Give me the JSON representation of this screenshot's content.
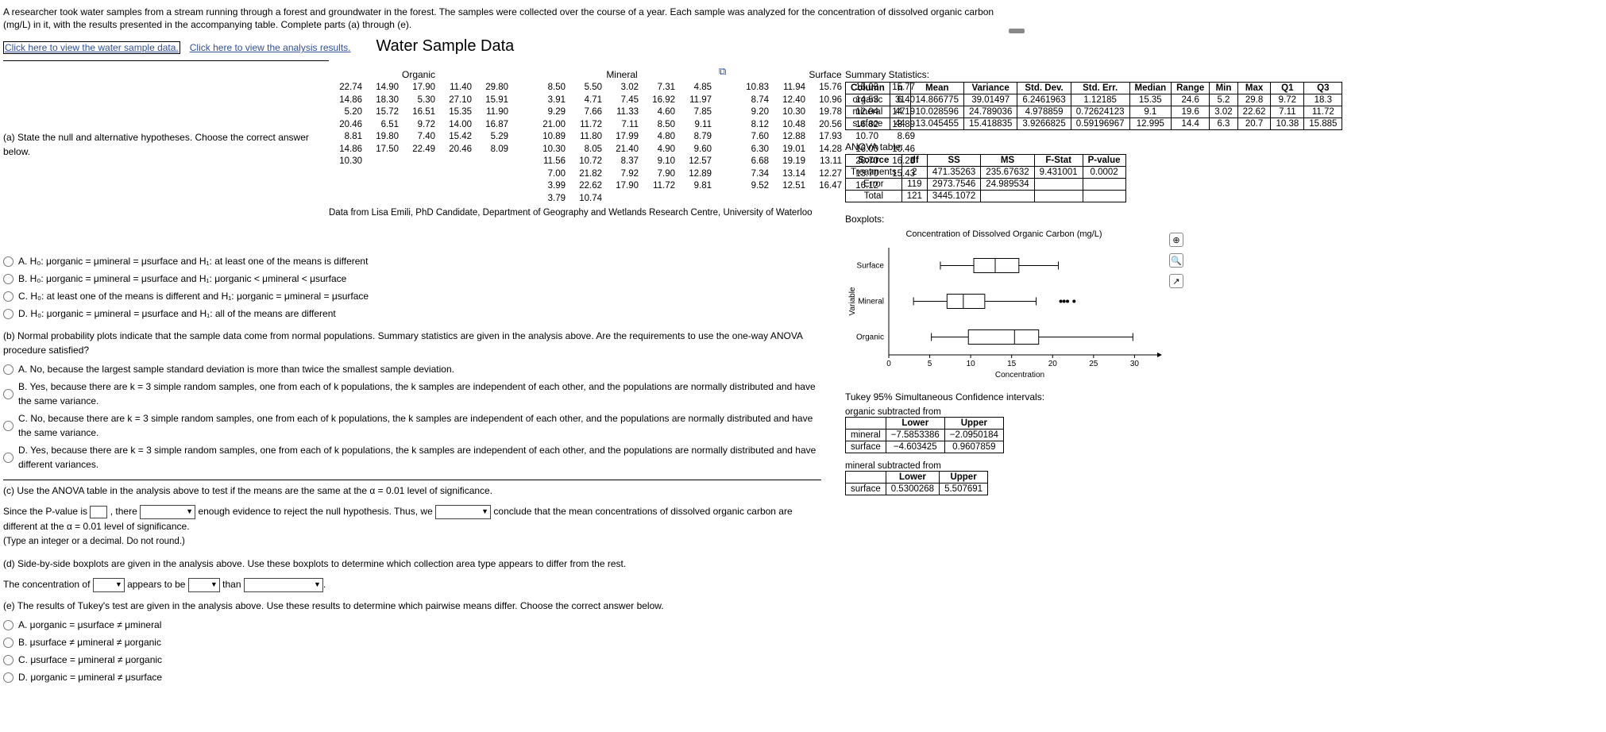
{
  "intro": "A researcher took water samples from a stream running through a forest and groundwater in the forest. The samples were collected over the course of a year. Each sample was analyzed for the concentration of dissolved organic carbon (mg/L) in it, with the results presented in the accompanying table. Complete parts (a) through (e).",
  "links": {
    "data": "Click here to view the water sample data.",
    "analysis": "Click here to view the analysis results."
  },
  "panel_title": "Water Sample Data",
  "data_credit": "Data from Lisa Emili, PhD Candidate, Department of Geography and Wetlands Research Centre, University of Waterloo",
  "columns": {
    "organic": {
      "header": "Organic",
      "values": [
        "22.74",
        "14.90",
        "17.90",
        "11.40",
        "29.80",
        "14.86",
        "18.30",
        "5.30",
        "27.10",
        "15.91",
        "5.20",
        "15.72",
        "16.51",
        "15.35",
        "11.90",
        "20.46",
        "6.51",
        "9.72",
        "14.00",
        "16.87",
        "8.81",
        "19.80",
        "7.40",
        "15.42",
        "5.29",
        "14.86",
        "17.50",
        "22.49",
        "20.46",
        "8.09",
        "10.30"
      ]
    },
    "mineral": {
      "header": "Mineral",
      "values": [
        "8.50",
        "5.50",
        "3.02",
        "7.31",
        "4.85",
        "3.91",
        "4.71",
        "7.45",
        "16.92",
        "11.97",
        "9.29",
        "7.66",
        "11.33",
        "4.60",
        "7.85",
        "21.00",
        "11.72",
        "7.11",
        "8.50",
        "9.11",
        "10.89",
        "11.80",
        "17.99",
        "4.80",
        "8.79",
        "10.30",
        "8.05",
        "21.40",
        "4.90",
        "9.60",
        "11.56",
        "10.72",
        "8.37",
        "9.10",
        "12.57",
        "7.00",
        "21.82",
        "7.92",
        "7.90",
        "12.89",
        "3.99",
        "22.62",
        "17.90",
        "11.72",
        "9.81",
        "3.79",
        "10.74"
      ]
    },
    "surface": {
      "header": "Surface",
      "values": [
        "10.83",
        "11.94",
        "15.76",
        "15.03",
        "15.77",
        "8.74",
        "12.40",
        "10.96",
        "14.53",
        "6.40",
        "9.20",
        "10.30",
        "19.78",
        "12.04",
        "14.19",
        "8.12",
        "10.48",
        "20.56",
        "16.82",
        "13.89",
        "7.60",
        "12.88",
        "17.93",
        "10.70",
        "8.69",
        "6.30",
        "19.01",
        "14.28",
        "16.00",
        "10.46",
        "6.68",
        "19.19",
        "13.11",
        "20.70",
        "16.23",
        "7.34",
        "13.14",
        "12.27",
        "13.70",
        "15.43",
        "9.52",
        "12.51",
        "16.47",
        "16.12"
      ]
    }
  },
  "qa": {
    "prompt": "(a) State the null and alternative hypotheses. Choose the correct answer below.",
    "A": {
      "lead": "A.  H₀: μorganic = μmineral = μsurface  and H₁: at least one of the means is different"
    },
    "B": {
      "lead": "B.  H₀: μorganic = μmineral = μsurface  and H₁: μorganic < μmineral < μsurface"
    },
    "C": {
      "lead": "C.  H₀: at least one of the means is different and H₁: μorganic = μmineral = μsurface"
    },
    "D": {
      "lead": "D.  H₀: μorganic = μmineral = μsurface  and H₁: all of the means are different"
    }
  },
  "qb": {
    "prompt": "(b) Normal probability plots indicate that the sample data come from normal populations. Summary statistics are given in the analysis above. Are the requirements to use the one-way ANOVA procedure satisfied?",
    "A": "A.  No, because the largest sample standard deviation is more than twice the smallest sample deviation.",
    "B": "B.  Yes, because there are k = 3 simple random samples, one from each of k populations, the k samples are independent of each other, and the populations are normally distributed and have the same variance.",
    "C": "C.  No, because there are k = 3 simple random samples, one from each of k populations, the k samples are independent of each other, and the populations are normally distributed and have the same variance.",
    "D": "D.  Yes, because there are k = 3 simple random samples, one from each of k populations, the k samples are independent of each other, and the populations are normally distributed and have different variances."
  },
  "qc": {
    "prompt": "(c) Use the ANOVA table in the analysis above to test if the means are the same at the α = 0.01 level of significance.",
    "s1a": "Since the P-value is ",
    "s1b": ", there ",
    "s1c": " enough evidence to reject the null hypothesis. Thus, we ",
    "s1d": " conclude that the mean concentrations of dissolved organic carbon are different at the α = 0.01 level of significance.",
    "instr": "(Type an integer or a decimal. Do not round.)"
  },
  "qd": {
    "prompt": "(d) Side-by-side boxplots are given in the analysis above. Use these boxplots to determine which collection area type appears to differ from the rest.",
    "s1a": "The concentration of ",
    "s1b": " appears to be ",
    "s1c": " than "
  },
  "qe": {
    "prompt": "(e) The results of Tukey's test are given in the analysis above. Use these results to determine which pairwise means differ. Choose the correct answer below.",
    "A": "A.  μorganic = μsurface ≠ μmineral",
    "B": "B.  μsurface ≠ μmineral ≠ μorganic",
    "C": "C.  μsurface = μmineral ≠ μorganic",
    "D": "D.  μorganic = μmineral ≠ μsurface"
  },
  "summary": {
    "title": "Summary Statistics:",
    "headers": [
      "Column",
      "n",
      "Mean",
      "Variance",
      "Std. Dev.",
      "Std. Err.",
      "Median",
      "Range",
      "Min",
      "Max",
      "Q1",
      "Q3"
    ],
    "rows": [
      [
        "organic",
        "31",
        "14.866775",
        "39.01497",
        "6.2461963",
        "1.12185",
        "15.35",
        "24.6",
        "5.2",
        "29.8",
        "9.72",
        "18.3"
      ],
      [
        "mineral",
        "47",
        "10.028596",
        "24.789036",
        "4.978859",
        "0.72624123",
        "9.1",
        "19.6",
        "3.02",
        "22.62",
        "7.11",
        "11.72"
      ],
      [
        "surface",
        "44",
        "13.045455",
        "15.418835",
        "3.9266825",
        "0.59196967",
        "12.995",
        "14.4",
        "6.3",
        "20.7",
        "10.38",
        "15.885"
      ]
    ]
  },
  "anova": {
    "title": "ANOVA table:",
    "headers": [
      "Source",
      "df",
      "SS",
      "MS",
      "F-Stat",
      "P-value"
    ],
    "rows": [
      [
        "Treatments",
        "2",
        "471.35263",
        "235.67632",
        "9.431001",
        "0.0002"
      ],
      [
        "Error",
        "119",
        "2973.7546",
        "24.989534",
        "",
        ""
      ],
      [
        "Total",
        "121",
        "3445.1072",
        "",
        "",
        ""
      ]
    ]
  },
  "boxplots_label": "Boxplots:",
  "boxplot": {
    "title": "Concentration of Dissolved Organic Carbon (mg/L)",
    "ylabel": "Variable",
    "xlabel": "Concentration",
    "xlim": [
      0,
      32
    ],
    "xticks": [
      0,
      5,
      10,
      15,
      20,
      25,
      30
    ],
    "categories": [
      "Surface",
      "Mineral",
      "Organic"
    ],
    "series": {
      "Surface": {
        "min": 6.3,
        "q1": 10.38,
        "med": 12.995,
        "q3": 15.885,
        "max": 20.7,
        "outliers": []
      },
      "Mineral": {
        "min": 3.02,
        "q1": 7.11,
        "med": 9.1,
        "q3": 11.72,
        "max": 17.99,
        "outliers": [
          21.0,
          21.4,
          21.82,
          22.62
        ]
      },
      "Organic": {
        "min": 5.2,
        "q1": 9.72,
        "med": 15.35,
        "q3": 18.3,
        "max": 29.8,
        "outliers": []
      }
    },
    "stroke": "#000000",
    "fill": "#ffffff",
    "axis_color": "#000000",
    "font_size": 10
  },
  "tukey": {
    "title": "Tukey 95% Simultaneous Confidence intervals:",
    "t1_label": "organic subtracted from",
    "t1": {
      "headers": [
        "",
        "Lower",
        "Upper"
      ],
      "rows": [
        [
          "mineral",
          "−7.5853386",
          "−2.0950184"
        ],
        [
          "surface",
          "−4.603425",
          "0.9607859"
        ]
      ]
    },
    "t2_label": "mineral subtracted from",
    "t2": {
      "headers": [
        "",
        "Lower",
        "Upper"
      ],
      "rows": [
        [
          "surface",
          "0.5300268",
          "5.507691"
        ]
      ]
    }
  }
}
